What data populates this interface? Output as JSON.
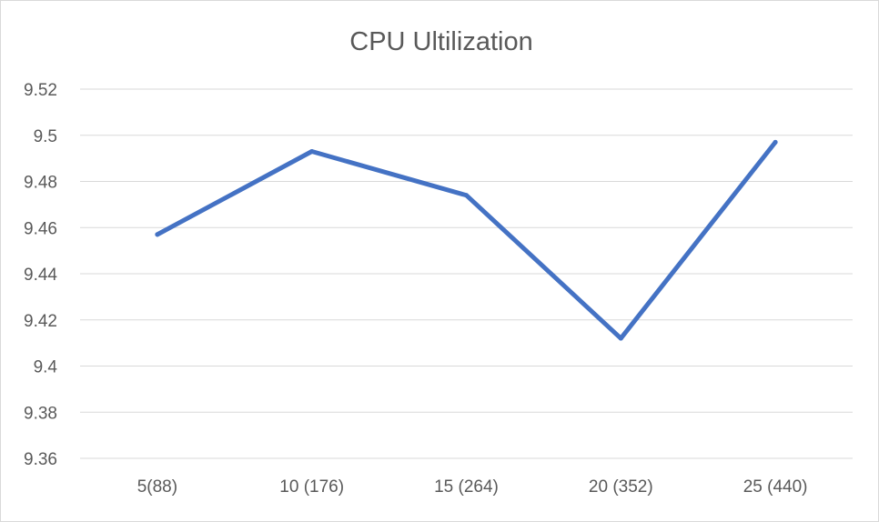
{
  "chart_data": {
    "type": "line",
    "title": "CPU Ultilization",
    "xlabel": "",
    "ylabel": "",
    "categories": [
      "5(88)",
      "10 (176)",
      "15 (264)",
      "20 (352)",
      "25 (440)"
    ],
    "series": [
      {
        "values": [
          9.457,
          9.493,
          9.474,
          9.412,
          9.497
        ],
        "color": "#4472c4"
      }
    ],
    "ylim": [
      9.36,
      9.52
    ],
    "yticks": [
      9.36,
      9.38,
      9.4,
      9.42,
      9.44,
      9.46,
      9.48,
      9.5,
      9.52
    ],
    "ytick_labels": [
      "9.36",
      "9.38",
      "9.4",
      "9.42",
      "9.44",
      "9.46",
      "9.48",
      "9.5",
      "9.52"
    ],
    "grid": true,
    "legend": "none"
  }
}
